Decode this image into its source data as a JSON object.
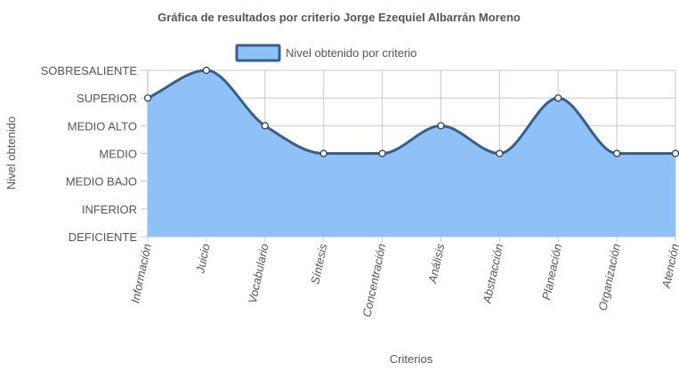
{
  "chart_data": {
    "type": "area",
    "title": "Gráfica de resultados por criterio Jorge Ezequiel Albarrán Moreno",
    "xlabel": "Criterios",
    "ylabel": "Nivel obtenido",
    "categories": [
      "Información",
      "Juicio",
      "Vocabulario",
      "Síntesis",
      "Concentración",
      "Análisis",
      "Abstracción",
      "Planeación",
      "Organización",
      "Atención"
    ],
    "y_levels": [
      "DEFICIENTE",
      "INFERIOR",
      "MEDIO BAJO",
      "MEDIO",
      "MEDIO ALTO",
      "SUPERIOR",
      "SOBRESALIENTE"
    ],
    "series": [
      {
        "name": "Nivel obtenido por criterio",
        "values": [
          "SUPERIOR",
          "SOBRESALIENTE",
          "MEDIO ALTO",
          "MEDIO",
          "MEDIO",
          "MEDIO ALTO",
          "MEDIO",
          "SUPERIOR",
          "MEDIO",
          "MEDIO"
        ]
      }
    ],
    "legend_position": "top-center",
    "grid": true,
    "colors": {
      "fill": "#8fc1f7",
      "line": "#2f5f94",
      "point_fill": "#ffffff",
      "point_stroke": "#1f3550"
    }
  }
}
